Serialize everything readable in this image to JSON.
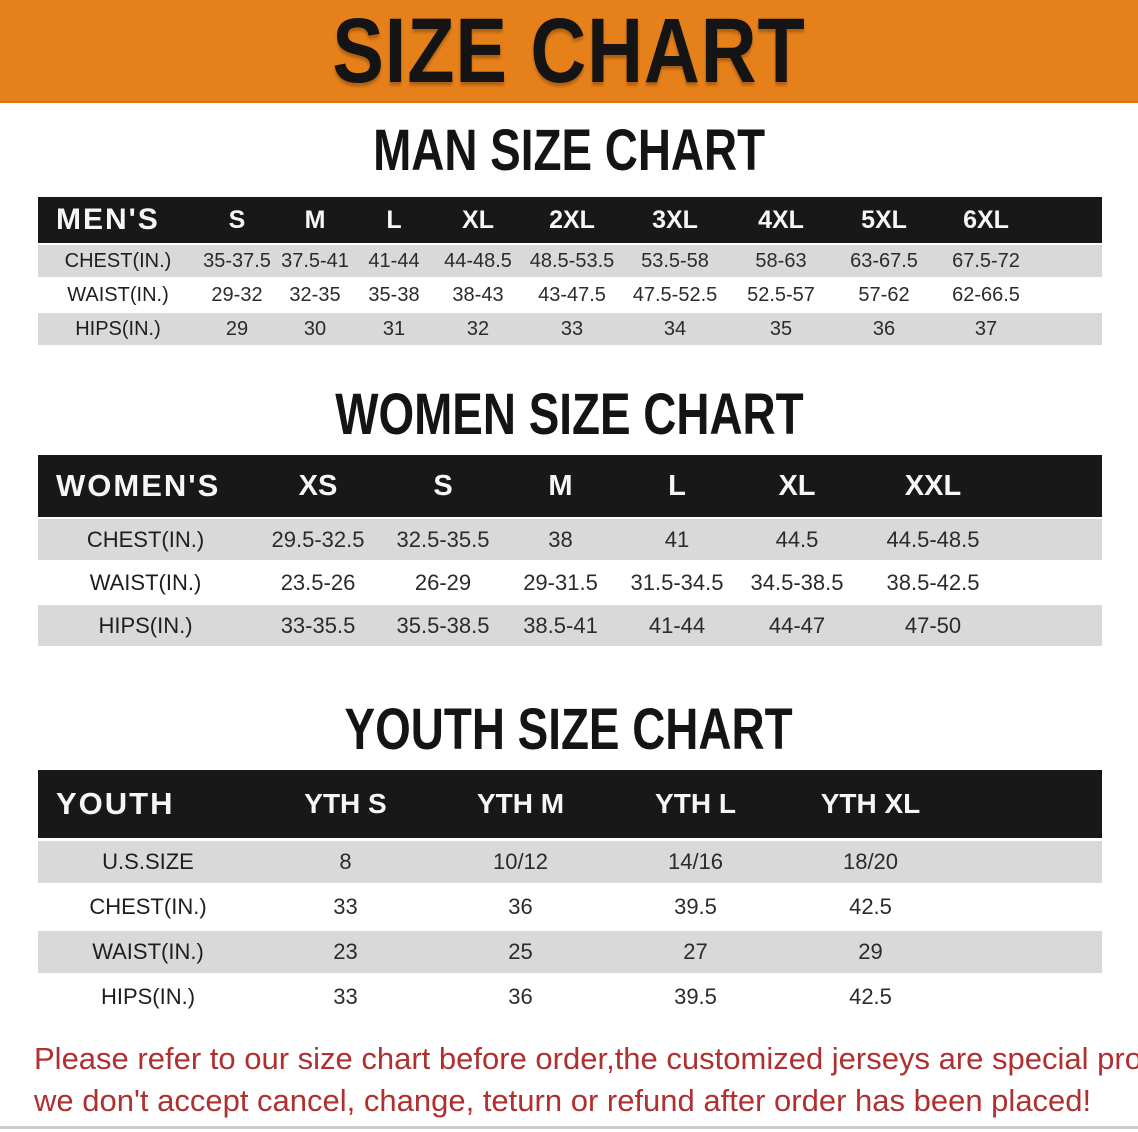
{
  "banner": {
    "title": "SIZE CHART"
  },
  "sections": {
    "man": {
      "title": "MAN SIZE CHART",
      "header_label": "MEN'S",
      "columns": [
        "S",
        "M",
        "L",
        "XL",
        "2XL",
        "3XL",
        "4XL",
        "5XL",
        "6XL"
      ],
      "rows": [
        {
          "label": "CHEST(IN.)",
          "values": [
            "35-37.5",
            "37.5-41",
            "41-44",
            "44-48.5",
            "48.5-53.5",
            "53.5-58",
            "58-63",
            "63-67.5",
            "67.5-72"
          ]
        },
        {
          "label": "WAIST(IN.)",
          "values": [
            "29-32",
            "32-35",
            "35-38",
            "38-43",
            "43-47.5",
            "47.5-52.5",
            "52.5-57",
            "57-62",
            "62-66.5"
          ]
        },
        {
          "label": "HIPS(IN.)",
          "values": [
            "29",
            "30",
            "31",
            "32",
            "33",
            "34",
            "35",
            "36",
            "37"
          ]
        }
      ]
    },
    "women": {
      "title": "WOMEN SIZE CHART",
      "header_label": "WOMEN'S",
      "columns": [
        "XS",
        "S",
        "M",
        "L",
        "XL",
        "XXL"
      ],
      "rows": [
        {
          "label": "CHEST(IN.)",
          "values": [
            "29.5-32.5",
            "32.5-35.5",
            "38",
            "41",
            "44.5",
            "44.5-48.5"
          ]
        },
        {
          "label": "WAIST(IN.)",
          "values": [
            "23.5-26",
            "26-29",
            "29-31.5",
            "31.5-34.5",
            "34.5-38.5",
            "38.5-42.5"
          ]
        },
        {
          "label": "HIPS(IN.)",
          "values": [
            "33-35.5",
            "35.5-38.5",
            "38.5-41",
            "41-44",
            "44-47",
            "47-50"
          ]
        }
      ]
    },
    "youth": {
      "title": "YOUTH SIZE CHART",
      "header_label": "YOUTH",
      "columns": [
        "YTH S",
        "YTH M",
        "YTH L",
        "YTH XL"
      ],
      "rows": [
        {
          "label": "U.S.SIZE",
          "values": [
            "8",
            "10/12",
            "14/16",
            "18/20"
          ]
        },
        {
          "label": "CHEST(IN.)",
          "values": [
            "33",
            "36",
            "39.5",
            "42.5"
          ]
        },
        {
          "label": "WAIST(IN.)",
          "values": [
            "23",
            "25",
            "27",
            "29"
          ]
        },
        {
          "label": "HIPS(IN.)",
          "values": [
            "33",
            "36",
            "39.5",
            "42.5"
          ]
        }
      ]
    }
  },
  "footer": {
    "line1": "Please refer to our size chart before order,the customized jerseys are special products,",
    "line2": "we don't accept cancel, change, teturn or refund after order has been placed!"
  },
  "colors": {
    "banner_bg": "#e6801a",
    "table_header_bg": "#181818",
    "row_stripe": "#d9d9d9",
    "disclaimer_text": "#b03030",
    "title_text": "#141414"
  }
}
